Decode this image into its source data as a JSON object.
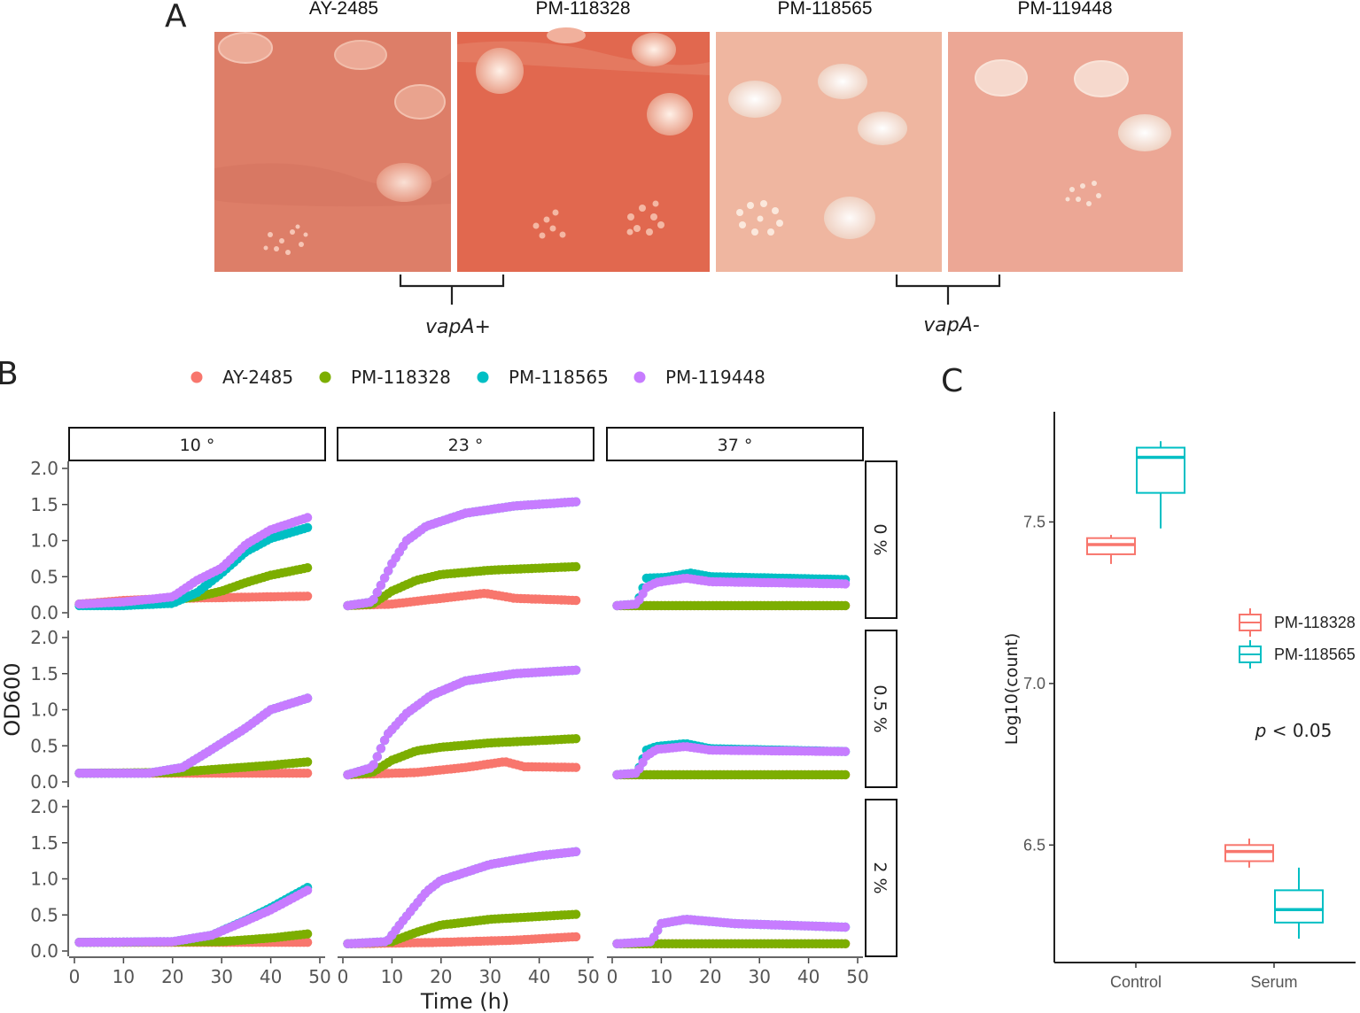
{
  "panel_a": {
    "letter": "A",
    "strains": [
      "AY-2485",
      "PM-118328",
      "PM-118565",
      "PM-119448"
    ],
    "groups": [
      {
        "label": "vapA+"
      },
      {
        "label": "vapA-"
      }
    ],
    "colors": {
      "plate_pos_1": "#dd7e68",
      "plate_pos_2": "#e1684f",
      "plate_neg_1": "#efb6a0",
      "plate_neg_2": "#eca795",
      "colony_pos": "#f6b7a5",
      "colony_neg": "#fbe8dc"
    }
  },
  "chart_data": [
    {
      "id": "panel_b",
      "letter": "B",
      "type": "scatter",
      "title": "",
      "xlabel": "Time (h)",
      "ylabel": "OD600",
      "xlim": [
        0,
        50
      ],
      "ylim": [
        0,
        2.0
      ],
      "xticks": [
        "0",
        "10",
        "20",
        "30",
        "40",
        "50"
      ],
      "yticks": [
        "0.0",
        "0.5",
        "1.0",
        "1.5",
        "2.0"
      ],
      "legend_position": "top",
      "col_facets": [
        "10 °",
        "23 °",
        "37 °"
      ],
      "row_facets": [
        "0 %",
        "0.5 %",
        "2 %"
      ],
      "series": [
        {
          "name": "AY-2485",
          "color": "#f8766d"
        },
        {
          "name": "PM-118328",
          "color": "#7cae00"
        },
        {
          "name": "PM-118565",
          "color": "#00bfc4"
        },
        {
          "name": "PM-119448",
          "color": "#c77cff"
        }
      ],
      "curves": {
        "10 °|0 %": {
          "AY-2485": [
            [
              1,
              0.12
            ],
            [
              10,
              0.17
            ],
            [
              20,
              0.2
            ],
            [
              30,
              0.21
            ],
            [
              48,
              0.23
            ]
          ],
          "PM-118328": [
            [
              1,
              0.12
            ],
            [
              10,
              0.14
            ],
            [
              20,
              0.18
            ],
            [
              25,
              0.22
            ],
            [
              30,
              0.3
            ],
            [
              35,
              0.42
            ],
            [
              40,
              0.52
            ],
            [
              48,
              0.63
            ]
          ],
          "PM-118565": [
            [
              1,
              0.1
            ],
            [
              10,
              0.1
            ],
            [
              20,
              0.13
            ],
            [
              25,
              0.28
            ],
            [
              30,
              0.55
            ],
            [
              35,
              0.85
            ],
            [
              40,
              1.03
            ],
            [
              48,
              1.19
            ]
          ],
          "PM-119448": [
            [
              1,
              0.12
            ],
            [
              10,
              0.15
            ],
            [
              20,
              0.22
            ],
            [
              25,
              0.45
            ],
            [
              30,
              0.62
            ],
            [
              35,
              0.95
            ],
            [
              40,
              1.15
            ],
            [
              48,
              1.33
            ]
          ]
        },
        "23 °|0 %": {
          "AY-2485": [
            [
              1,
              0.1
            ],
            [
              10,
              0.12
            ],
            [
              20,
              0.2
            ],
            [
              29,
              0.27
            ],
            [
              35,
              0.2
            ],
            [
              48,
              0.17
            ]
          ],
          "PM-118328": [
            [
              1,
              0.1
            ],
            [
              6,
              0.12
            ],
            [
              10,
              0.3
            ],
            [
              15,
              0.45
            ],
            [
              20,
              0.53
            ],
            [
              30,
              0.59
            ],
            [
              48,
              0.64
            ]
          ],
          "PM-118565": [
            [
              1,
              0.1
            ],
            [
              6,
              0.15
            ],
            [
              10,
              0.68
            ],
            [
              13,
              1.0
            ],
            [
              17,
              1.2
            ],
            [
              25,
              1.38
            ],
            [
              35,
              1.48
            ],
            [
              48,
              1.54
            ]
          ],
          "PM-119448": [
            [
              1,
              0.1
            ],
            [
              6,
              0.15
            ],
            [
              10,
              0.68
            ],
            [
              13,
              1.0
            ],
            [
              17,
              1.2
            ],
            [
              25,
              1.38
            ],
            [
              35,
              1.48
            ],
            [
              48,
              1.54
            ]
          ]
        },
        "37 °|0 %": {
          "AY-2485": [
            [
              1,
              0.1
            ],
            [
              48,
              0.1
            ]
          ],
          "PM-118328": [
            [
              1,
              0.1
            ],
            [
              48,
              0.1
            ]
          ],
          "PM-118565": [
            [
              1,
              0.1
            ],
            [
              5,
              0.12
            ],
            [
              7,
              0.48
            ],
            [
              11,
              0.49
            ],
            [
              16,
              0.55
            ],
            [
              20,
              0.5
            ],
            [
              48,
              0.46
            ]
          ],
          "PM-119448": [
            [
              1,
              0.1
            ],
            [
              5,
              0.12
            ],
            [
              7,
              0.35
            ],
            [
              9,
              0.42
            ],
            [
              15,
              0.48
            ],
            [
              20,
              0.43
            ],
            [
              48,
              0.4
            ]
          ]
        },
        "10 °|0.5 %": {
          "AY-2485": [
            [
              1,
              0.12
            ],
            [
              48,
              0.12
            ]
          ],
          "PM-118328": [
            [
              1,
              0.12
            ],
            [
              20,
              0.13
            ],
            [
              30,
              0.18
            ],
            [
              40,
              0.23
            ],
            [
              48,
              0.28
            ]
          ],
          "PM-118565": [
            [
              1,
              0.12
            ],
            [
              15,
              0.12
            ],
            [
              22,
              0.2
            ],
            [
              28,
              0.45
            ],
            [
              35,
              0.75
            ],
            [
              40,
              1.0
            ],
            [
              48,
              1.17
            ]
          ],
          "PM-119448": [
            [
              1,
              0.12
            ],
            [
              15,
              0.12
            ],
            [
              22,
              0.2
            ],
            [
              28,
              0.45
            ],
            [
              35,
              0.75
            ],
            [
              40,
              1.0
            ],
            [
              48,
              1.17
            ]
          ]
        },
        "23 °|0.5 %": {
          "AY-2485": [
            [
              1,
              0.1
            ],
            [
              15,
              0.13
            ],
            [
              25,
              0.2
            ],
            [
              33,
              0.28
            ],
            [
              37,
              0.21
            ],
            [
              48,
              0.2
            ]
          ],
          "PM-118328": [
            [
              1,
              0.1
            ],
            [
              6,
              0.13
            ],
            [
              10,
              0.3
            ],
            [
              15,
              0.43
            ],
            [
              20,
              0.48
            ],
            [
              30,
              0.54
            ],
            [
              48,
              0.6
            ]
          ],
          "PM-118565": [
            [
              1,
              0.1
            ],
            [
              6,
              0.2
            ],
            [
              9,
              0.65
            ],
            [
              13,
              0.95
            ],
            [
              18,
              1.2
            ],
            [
              25,
              1.4
            ],
            [
              35,
              1.5
            ],
            [
              48,
              1.55
            ]
          ],
          "PM-119448": [
            [
              1,
              0.1
            ],
            [
              6,
              0.2
            ],
            [
              9,
              0.65
            ],
            [
              13,
              0.95
            ],
            [
              18,
              1.2
            ],
            [
              25,
              1.4
            ],
            [
              35,
              1.5
            ],
            [
              48,
              1.55
            ]
          ]
        },
        "37 °|0.5 %": {
          "AY-2485": [
            [
              1,
              0.1
            ],
            [
              48,
              0.1
            ]
          ],
          "PM-118328": [
            [
              1,
              0.1
            ],
            [
              48,
              0.1
            ]
          ],
          "PM-118565": [
            [
              1,
              0.1
            ],
            [
              5,
              0.12
            ],
            [
              7,
              0.44
            ],
            [
              9,
              0.49
            ],
            [
              15,
              0.53
            ],
            [
              20,
              0.46
            ],
            [
              48,
              0.42
            ]
          ],
          "PM-119448": [
            [
              1,
              0.1
            ],
            [
              5,
              0.12
            ],
            [
              7,
              0.36
            ],
            [
              9,
              0.45
            ],
            [
              15,
              0.49
            ],
            [
              20,
              0.44
            ],
            [
              48,
              0.42
            ]
          ]
        },
        "10 °|2 %": {
          "AY-2485": [
            [
              1,
              0.12
            ],
            [
              48,
              0.12
            ]
          ],
          "PM-118328": [
            [
              1,
              0.12
            ],
            [
              30,
              0.13
            ],
            [
              40,
              0.18
            ],
            [
              48,
              0.24
            ]
          ],
          "PM-118565": [
            [
              1,
              0.12
            ],
            [
              20,
              0.13
            ],
            [
              28,
              0.22
            ],
            [
              35,
              0.43
            ],
            [
              40,
              0.6
            ],
            [
              48,
              0.9
            ]
          ],
          "PM-119448": [
            [
              1,
              0.12
            ],
            [
              20,
              0.13
            ],
            [
              28,
              0.22
            ],
            [
              35,
              0.42
            ],
            [
              40,
              0.57
            ],
            [
              48,
              0.86
            ]
          ]
        },
        "23 °|2 %": {
          "AY-2485": [
            [
              1,
              0.1
            ],
            [
              20,
              0.12
            ],
            [
              35,
              0.15
            ],
            [
              48,
              0.2
            ]
          ],
          "PM-118328": [
            [
              1,
              0.1
            ],
            [
              10,
              0.13
            ],
            [
              15,
              0.26
            ],
            [
              20,
              0.36
            ],
            [
              30,
              0.44
            ],
            [
              48,
              0.51
            ]
          ],
          "PM-118565": [
            [
              1,
              0.1
            ],
            [
              9,
              0.13
            ],
            [
              12,
              0.4
            ],
            [
              17,
              0.82
            ],
            [
              20,
              0.98
            ],
            [
              30,
              1.2
            ],
            [
              40,
              1.32
            ],
            [
              48,
              1.38
            ]
          ],
          "PM-119448": [
            [
              1,
              0.1
            ],
            [
              9,
              0.13
            ],
            [
              12,
              0.4
            ],
            [
              17,
              0.82
            ],
            [
              20,
              0.98
            ],
            [
              30,
              1.2
            ],
            [
              40,
              1.32
            ],
            [
              48,
              1.38
            ]
          ]
        },
        "37 °|2 %": {
          "AY-2485": [
            [
              1,
              0.1
            ],
            [
              48,
              0.1
            ]
          ],
          "PM-118328": [
            [
              1,
              0.1
            ],
            [
              48,
              0.1
            ]
          ],
          "PM-118565": [
            [
              1,
              0.1
            ],
            [
              8,
              0.13
            ],
            [
              10,
              0.38
            ],
            [
              15,
              0.44
            ],
            [
              25,
              0.38
            ],
            [
              48,
              0.33
            ]
          ],
          "PM-119448": [
            [
              1,
              0.1
            ],
            [
              8,
              0.13
            ],
            [
              10,
              0.38
            ],
            [
              15,
              0.44
            ],
            [
              25,
              0.38
            ],
            [
              48,
              0.33
            ]
          ]
        }
      }
    },
    {
      "id": "panel_c",
      "letter": "C",
      "type": "box",
      "title": "",
      "xlabel": "",
      "ylabel": "Log10(count)",
      "categories": [
        "Control",
        "Serum"
      ],
      "ylim": [
        6.15,
        7.8
      ],
      "yticks": [
        "6.5",
        "7.0",
        "7.5"
      ],
      "legend_position": "right",
      "annotation": {
        "p": "p",
        "rest": " < 0.05"
      },
      "series": [
        {
          "name": "PM-118328",
          "color": "#f8766d",
          "boxes": [
            {
              "category": "Control",
              "min": 7.37,
              "q1": 7.4,
              "median": 7.43,
              "q3": 7.45,
              "max": 7.46
            },
            {
              "category": "Serum",
              "min": 6.43,
              "q1": 6.45,
              "median": 6.48,
              "q3": 6.5,
              "max": 6.52
            }
          ]
        },
        {
          "name": "PM-118565",
          "color": "#00bfc4",
          "boxes": [
            {
              "category": "Control",
              "min": 7.48,
              "q1": 7.59,
              "median": 7.7,
              "q3": 7.73,
              "max": 7.75
            },
            {
              "category": "Serum",
              "min": 6.21,
              "q1": 6.26,
              "median": 6.3,
              "q3": 6.36,
              "max": 6.43
            }
          ]
        }
      ]
    }
  ]
}
